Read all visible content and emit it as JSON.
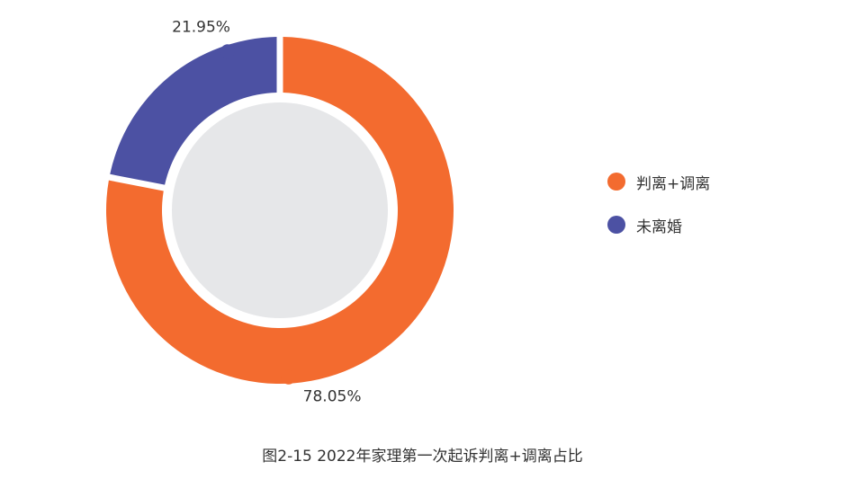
{
  "chart_data": {
    "type": "pie",
    "style": "donut",
    "title": "",
    "caption": "图2-15  2022年家理第一次起诉判离+调离占比",
    "slices": [
      {
        "label": "判离+调离",
        "value": 78.05,
        "value_label": "78.05%",
        "color": "#f36b2f"
      },
      {
        "label": "未离婚",
        "value": 21.95,
        "value_label": "21.95%",
        "color": "#4c51a3"
      }
    ],
    "center_fill": "#e6e7e9",
    "legend_position": "right"
  }
}
